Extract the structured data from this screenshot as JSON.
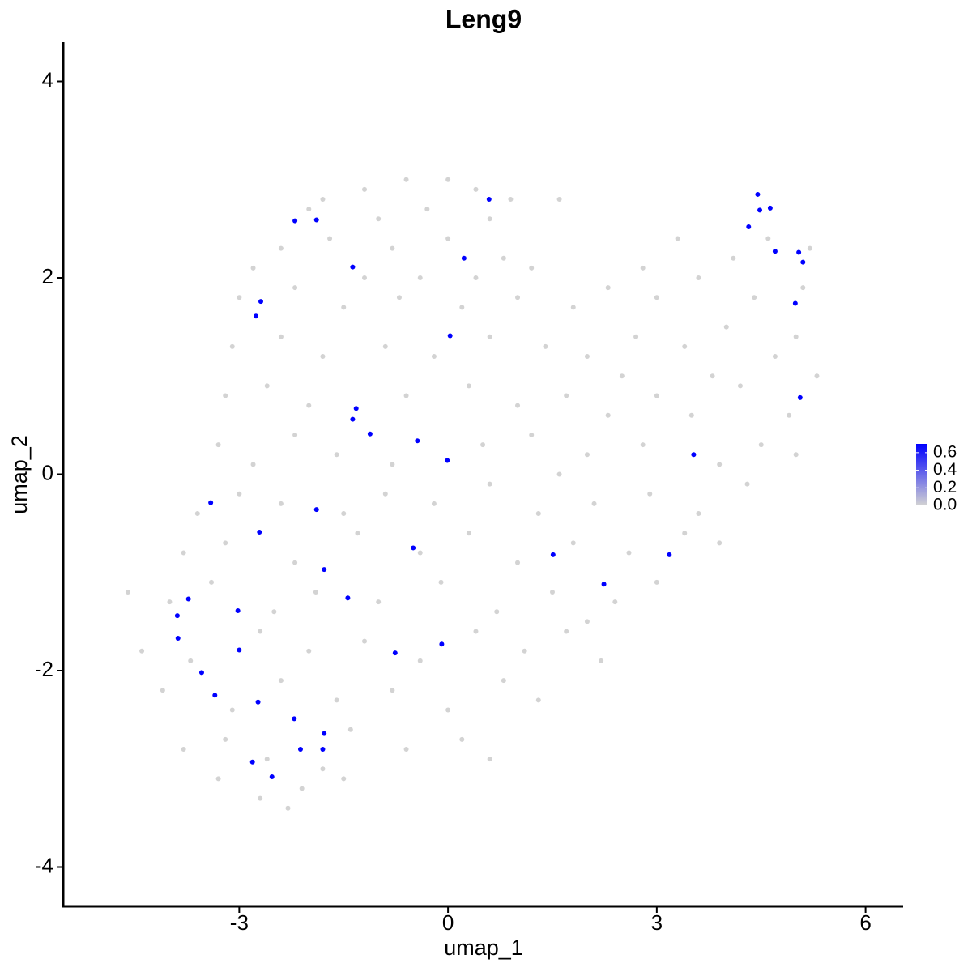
{
  "chart_data": {
    "type": "scatter",
    "title": "Leng9",
    "x_label": "umap_1",
    "y_label": "umap_2",
    "xlim": [
      -5.53,
      6.54
    ],
    "ylim": [
      -4.4,
      4.4
    ],
    "xticks": [
      -3,
      0,
      3,
      6
    ],
    "yticks": [
      -4,
      -2,
      0,
      2,
      4
    ],
    "colorbar": {
      "lim": [
        0,
        0.7
      ],
      "low": "#d3d3d3",
      "high": "#0000ff",
      "ticks": [
        {
          "value": 0,
          "label": "0.0"
        },
        {
          "value": 0.2,
          "label": "0.2"
        },
        {
          "value": 0.4,
          "label": "0.4"
        },
        {
          "value": 0.6,
          "label": "0.6"
        }
      ]
    },
    "series": [
      {
        "color": "#d3d3d3",
        "x": [
          -1.8,
          -1.2,
          -0.6,
          0,
          0.4,
          0.9,
          -2.0,
          -1.0,
          -0.3,
          0.6,
          1.6,
          -2.4,
          -1.7,
          -0.8,
          0,
          0.8,
          -2.8,
          -1.2,
          -0.4,
          0.4,
          1.2,
          -3.0,
          -2.2,
          -1.5,
          -0.7,
          0.2,
          1.0,
          1.8,
          2.3,
          3.0,
          3.6,
          4.1,
          4.6,
          5.2,
          3.3,
          2.8,
          4.4,
          5.1,
          -3.1,
          -2.4,
          -1.8,
          -0.9,
          -0.2,
          0.6,
          1.4,
          2.0,
          2.7,
          3.4,
          4.0,
          4.7,
          5.0,
          3.8,
          2.5,
          -3.2,
          -2.6,
          -2.0,
          -0.6,
          0.3,
          1.0,
          1.7,
          2.3,
          3.0,
          4.2,
          4.9,
          5.3,
          3.5,
          -3.3,
          -2.8,
          -2.2,
          -1.6,
          -0.8,
          0.5,
          1.2,
          2.0,
          2.8,
          3.9,
          4.5,
          5.0,
          1.6,
          -3.6,
          -3.0,
          -2.4,
          -1.5,
          -0.9,
          -0.2,
          0.6,
          1.3,
          2.1,
          2.9,
          3.6,
          4.3,
          -3.8,
          -3.2,
          -2.2,
          -1.3,
          -0.4,
          0.3,
          1.0,
          1.8,
          2.6,
          3.4,
          3.9,
          -4.6,
          -4.0,
          -3.4,
          -2.5,
          -1.9,
          -1.0,
          -0.1,
          0.7,
          1.5,
          2.4,
          3.0,
          2.0,
          -4.4,
          -3.7,
          -2.7,
          -2.0,
          -1.2,
          -0.4,
          0.4,
          1.1,
          1.7,
          2.2,
          -4.1,
          -3.1,
          -2.4,
          -1.6,
          -0.8,
          0.0,
          0.8,
          1.3,
          -3.8,
          -3.2,
          -2.6,
          -1.4,
          -0.6,
          0.2,
          0.6,
          -1.8,
          -2.7,
          -2.3,
          -1.5,
          -3.3,
          -2.1
        ],
        "values": [
          2.8,
          2.9,
          3.0,
          3.0,
          2.9,
          2.8,
          2.7,
          2.6,
          2.7,
          2.6,
          2.8,
          2.3,
          2.4,
          2.3,
          2.4,
          2.2,
          2.1,
          2.0,
          2.0,
          2.0,
          2.1,
          1.8,
          1.9,
          1.7,
          1.8,
          1.7,
          1.8,
          1.7,
          1.9,
          1.8,
          2.0,
          2.2,
          2.4,
          2.3,
          2.4,
          2.1,
          1.8,
          1.9,
          1.3,
          1.4,
          1.2,
          1.3,
          1.2,
          1.4,
          1.3,
          1.2,
          1.4,
          1.3,
          1.5,
          1.2,
          1.4,
          1.0,
          1.0,
          0.8,
          0.9,
          0.7,
          0.8,
          0.9,
          0.7,
          0.8,
          0.6,
          0.8,
          0.9,
          0.6,
          1.0,
          0.6,
          0.3,
          0.1,
          0.4,
          0.2,
          0.1,
          0.3,
          0.4,
          0.2,
          0.3,
          0.1,
          0.3,
          0.2,
          0.0,
          -0.4,
          -0.2,
          -0.3,
          -0.4,
          -0.2,
          -0.3,
          -0.1,
          -0.4,
          -0.3,
          -0.2,
          -0.4,
          -0.1,
          -0.8,
          -0.7,
          -0.9,
          -0.6,
          -0.8,
          -0.6,
          -0.9,
          -0.7,
          -0.8,
          -0.6,
          -0.7,
          -1.2,
          -1.3,
          -1.1,
          -1.4,
          -1.2,
          -1.3,
          -1.1,
          -1.4,
          -1.2,
          -1.3,
          -1.1,
          -1.5,
          -1.8,
          -1.9,
          -1.6,
          -1.8,
          -1.7,
          -1.9,
          -1.6,
          -1.8,
          -1.6,
          -1.9,
          -2.2,
          -2.4,
          -2.1,
          -2.3,
          -2.2,
          -2.4,
          -2.1,
          -2.3,
          -2.8,
          -2.7,
          -2.9,
          -2.6,
          -2.8,
          -2.7,
          -2.9,
          -3.0,
          -3.3,
          -3.4,
          -3.1,
          -3.1,
          -3.2
        ]
      },
      {
        "color": "#0000ff",
        "x": [
          0.59,
          0.23,
          -1.37,
          -1.89,
          -2.2,
          -2.69,
          -2.76,
          0.03,
          -1.32,
          -1.37,
          -1.12,
          -0.44,
          -0.01,
          -3.41,
          -1.89,
          -2.71,
          -0.5,
          -1.78,
          1.51,
          2.24,
          3.18,
          3.53,
          -3.73,
          -3.02,
          -1.44,
          -3.89,
          -3.88,
          -3.0,
          -0.76,
          -0.09,
          -3.54,
          -3.35,
          -2.73,
          -2.21,
          -1.78,
          -2.12,
          -1.8,
          -2.81,
          -2.53,
          4.45,
          4.48,
          4.63,
          4.32,
          4.7,
          5.04,
          5.1,
          4.99,
          5.06
        ],
        "values": [
          2.8,
          2.2,
          2.11,
          2.59,
          2.58,
          1.76,
          1.61,
          1.41,
          0.67,
          0.56,
          0.41,
          0.34,
          0.14,
          -0.29,
          -0.36,
          -0.59,
          -0.75,
          -0.97,
          -0.82,
          -1.12,
          -0.82,
          0.2,
          -1.27,
          -1.39,
          -1.26,
          -1.44,
          -1.67,
          -1.79,
          -1.82,
          -1.73,
          -2.02,
          -2.25,
          -2.32,
          -2.49,
          -2.64,
          -2.8,
          -2.8,
          -2.93,
          -3.08,
          2.85,
          2.69,
          2.71,
          2.52,
          2.27,
          2.26,
          2.16,
          1.74,
          0.78
        ]
      }
    ]
  }
}
